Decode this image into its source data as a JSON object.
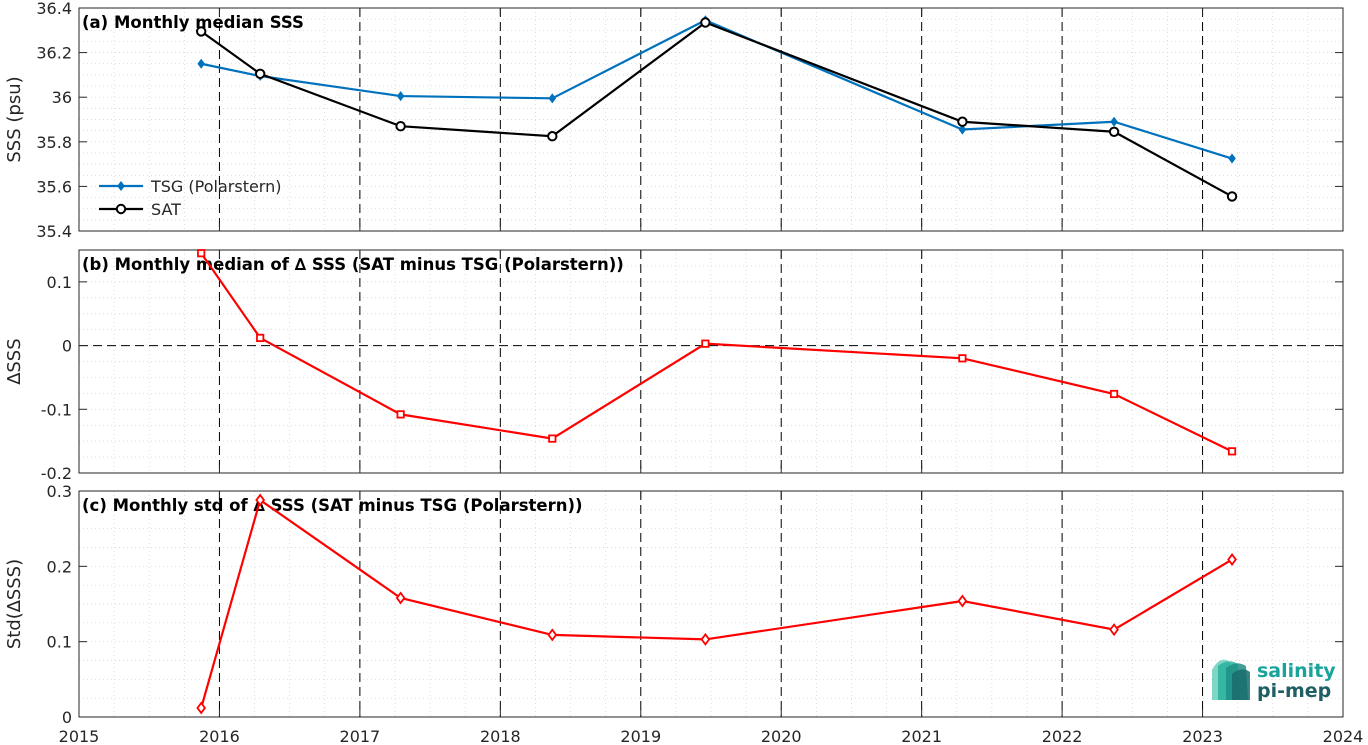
{
  "chart_data": [
    {
      "type": "line",
      "title": "(a) Monthly median SSS",
      "ylabel": "SSS (psu)",
      "xlim": [
        2015,
        2024
      ],
      "ylim": [
        35.4,
        36.4
      ],
      "yticks": [
        "36.4",
        "36.2",
        "36",
        "35.8",
        "35.6",
        "35.4"
      ],
      "legend_position": "bottom-left",
      "grid": "minor dotted",
      "series": [
        {
          "name": "TSG (Polarstern)",
          "color": "#0072bd",
          "marker": "diamond",
          "x": [
            2015.87,
            2016.29,
            2017.29,
            2018.37,
            2019.46,
            2021.29,
            2022.37,
            2023.21
          ],
          "y": [
            36.15,
            36.095,
            36.005,
            35.995,
            36.345,
            35.855,
            35.89,
            35.725
          ]
        },
        {
          "name": "SAT",
          "color": "#000000",
          "marker": "circle",
          "x": [
            2015.87,
            2016.29,
            2017.29,
            2018.37,
            2019.46,
            2021.29,
            2022.37,
            2023.21
          ],
          "y": [
            36.295,
            36.105,
            35.87,
            35.825,
            36.335,
            35.89,
            35.845,
            35.555
          ]
        }
      ]
    },
    {
      "type": "line",
      "title": "(b) Monthly median of ∆ SSS (SAT minus TSG (Polarstern))",
      "ylabel": "∆SSS",
      "xlim": [
        2015,
        2024
      ],
      "ylim": [
        -0.2,
        0.15
      ],
      "yticks": [
        "0.1",
        "0",
        "-0.1",
        "-0.2"
      ],
      "zero_line": "dashed",
      "series": [
        {
          "color": "#ff0000",
          "marker": "square",
          "x": [
            2015.87,
            2016.29,
            2017.29,
            2018.37,
            2019.46,
            2021.29,
            2022.37,
            2023.21
          ],
          "y": [
            0.145,
            0.012,
            -0.108,
            -0.146,
            0.003,
            -0.02,
            -0.076,
            -0.166
          ]
        }
      ]
    },
    {
      "type": "line",
      "title": "(c) Monthly std of ∆ SSS (SAT minus TSG (Polarstern))",
      "ylabel": "Std(∆SSS)",
      "xlim": [
        2015,
        2024
      ],
      "ylim": [
        0,
        0.3
      ],
      "yticks": [
        "0.3",
        "0.2",
        "0.1",
        "0"
      ],
      "xticks": [
        "2015",
        "2016",
        "2017",
        "2018",
        "2019",
        "2020",
        "2021",
        "2022",
        "2023",
        "2024"
      ],
      "series": [
        {
          "color": "#ff0000",
          "marker": "diamond",
          "x": [
            2015.87,
            2016.29,
            2017.29,
            2018.37,
            2019.46,
            2021.29,
            2022.37,
            2023.21
          ],
          "y": [
            0.012,
            0.288,
            0.158,
            0.109,
            0.103,
            0.154,
            0.116,
            0.209
          ]
        }
      ]
    }
  ],
  "logo": {
    "line1": "salinity",
    "line2": "pi-mep"
  }
}
